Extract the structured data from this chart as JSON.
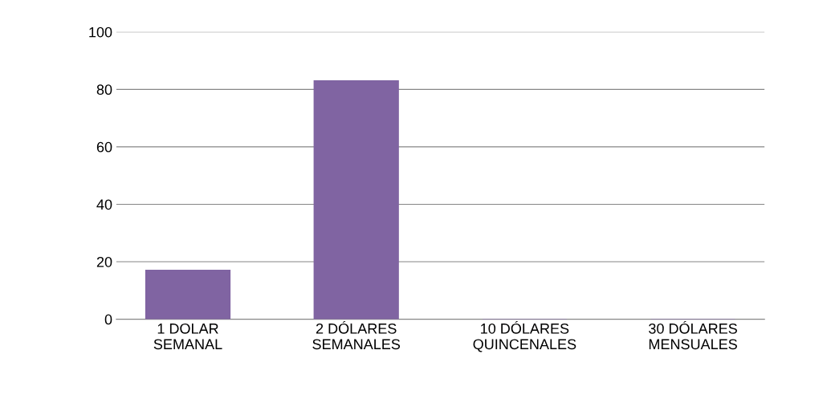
{
  "chart_data": {
    "type": "bar",
    "categories": [
      "1 DOLAR\nSEMANAL",
      "2 DÓLARES\nSEMANALES",
      "10 DÓLARES\nQUINCENALES",
      "30 DÓLARES\nMENSUALES"
    ],
    "values": [
      17,
      83,
      0,
      0
    ],
    "color": "#8064a2",
    "ylim": [
      0,
      100
    ],
    "yticks": [
      0,
      20,
      40,
      60,
      80,
      100
    ],
    "grid": "y"
  }
}
